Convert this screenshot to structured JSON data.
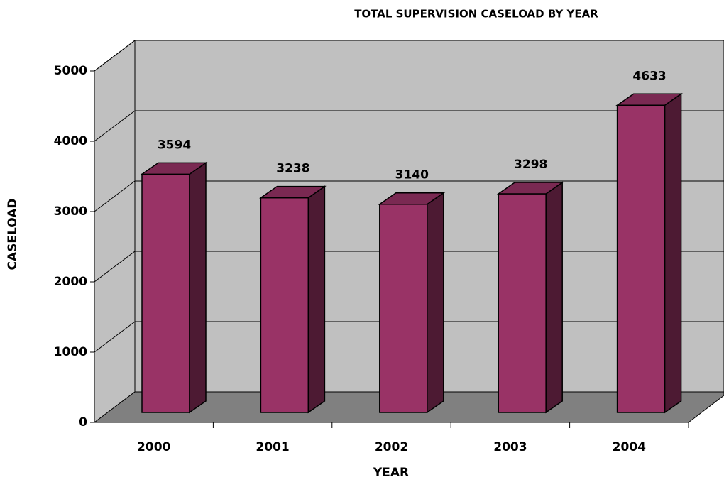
{
  "chart_data": {
    "type": "bar",
    "title": "TOTAL SUPERVISION CASELOAD BY YEAR",
    "x_label": "YEAR",
    "y_label": "CASELOAD",
    "categories": [
      "2000",
      "2001",
      "2002",
      "2003",
      "2004"
    ],
    "values": [
      3594,
      3238,
      3140,
      3298,
      4633
    ],
    "color": "#993366",
    "ylim": [
      0,
      5000
    ],
    "yticks": [
      0,
      1000,
      2000,
      3000,
      4000,
      5000
    ],
    "grid": true
  }
}
